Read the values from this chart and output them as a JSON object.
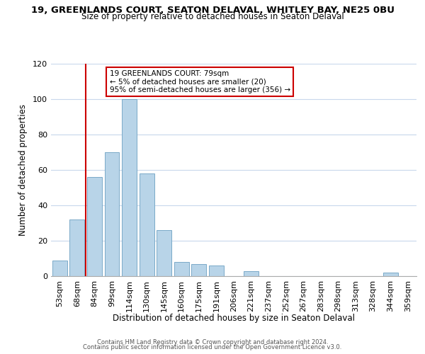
{
  "title": "19, GREENLANDS COURT, SEATON DELAVAL, WHITLEY BAY, NE25 0BU",
  "subtitle": "Size of property relative to detached houses in Seaton Delaval",
  "xlabel": "Distribution of detached houses by size in Seaton Delaval",
  "ylabel": "Number of detached properties",
  "bar_color": "#b8d4e8",
  "bar_edge_color": "#7aaac8",
  "bin_labels": [
    "53sqm",
    "68sqm",
    "84sqm",
    "99sqm",
    "114sqm",
    "130sqm",
    "145sqm",
    "160sqm",
    "175sqm",
    "191sqm",
    "206sqm",
    "221sqm",
    "237sqm",
    "252sqm",
    "267sqm",
    "283sqm",
    "298sqm",
    "313sqm",
    "328sqm",
    "344sqm",
    "359sqm"
  ],
  "bar_heights": [
    9,
    32,
    56,
    70,
    100,
    58,
    26,
    8,
    7,
    6,
    0,
    3,
    0,
    0,
    0,
    0,
    0,
    0,
    0,
    2,
    0
  ],
  "ylim": [
    0,
    120
  ],
  "yticks": [
    0,
    20,
    40,
    60,
    80,
    100,
    120
  ],
  "vline_color": "#cc0000",
  "vline_x_index": 2,
  "annotation_title": "19 GREENLANDS COURT: 79sqm",
  "annotation_line1": "← 5% of detached houses are smaller (20)",
  "annotation_line2": "95% of semi-detached houses are larger (356) →",
  "annotation_box_color": "#ffffff",
  "annotation_box_edge_color": "#cc0000",
  "footer1": "Contains HM Land Registry data © Crown copyright and database right 2024.",
  "footer2": "Contains public sector information licensed under the Open Government Licence v3.0.",
  "background_color": "#ffffff",
  "grid_color": "#c8d8ec"
}
